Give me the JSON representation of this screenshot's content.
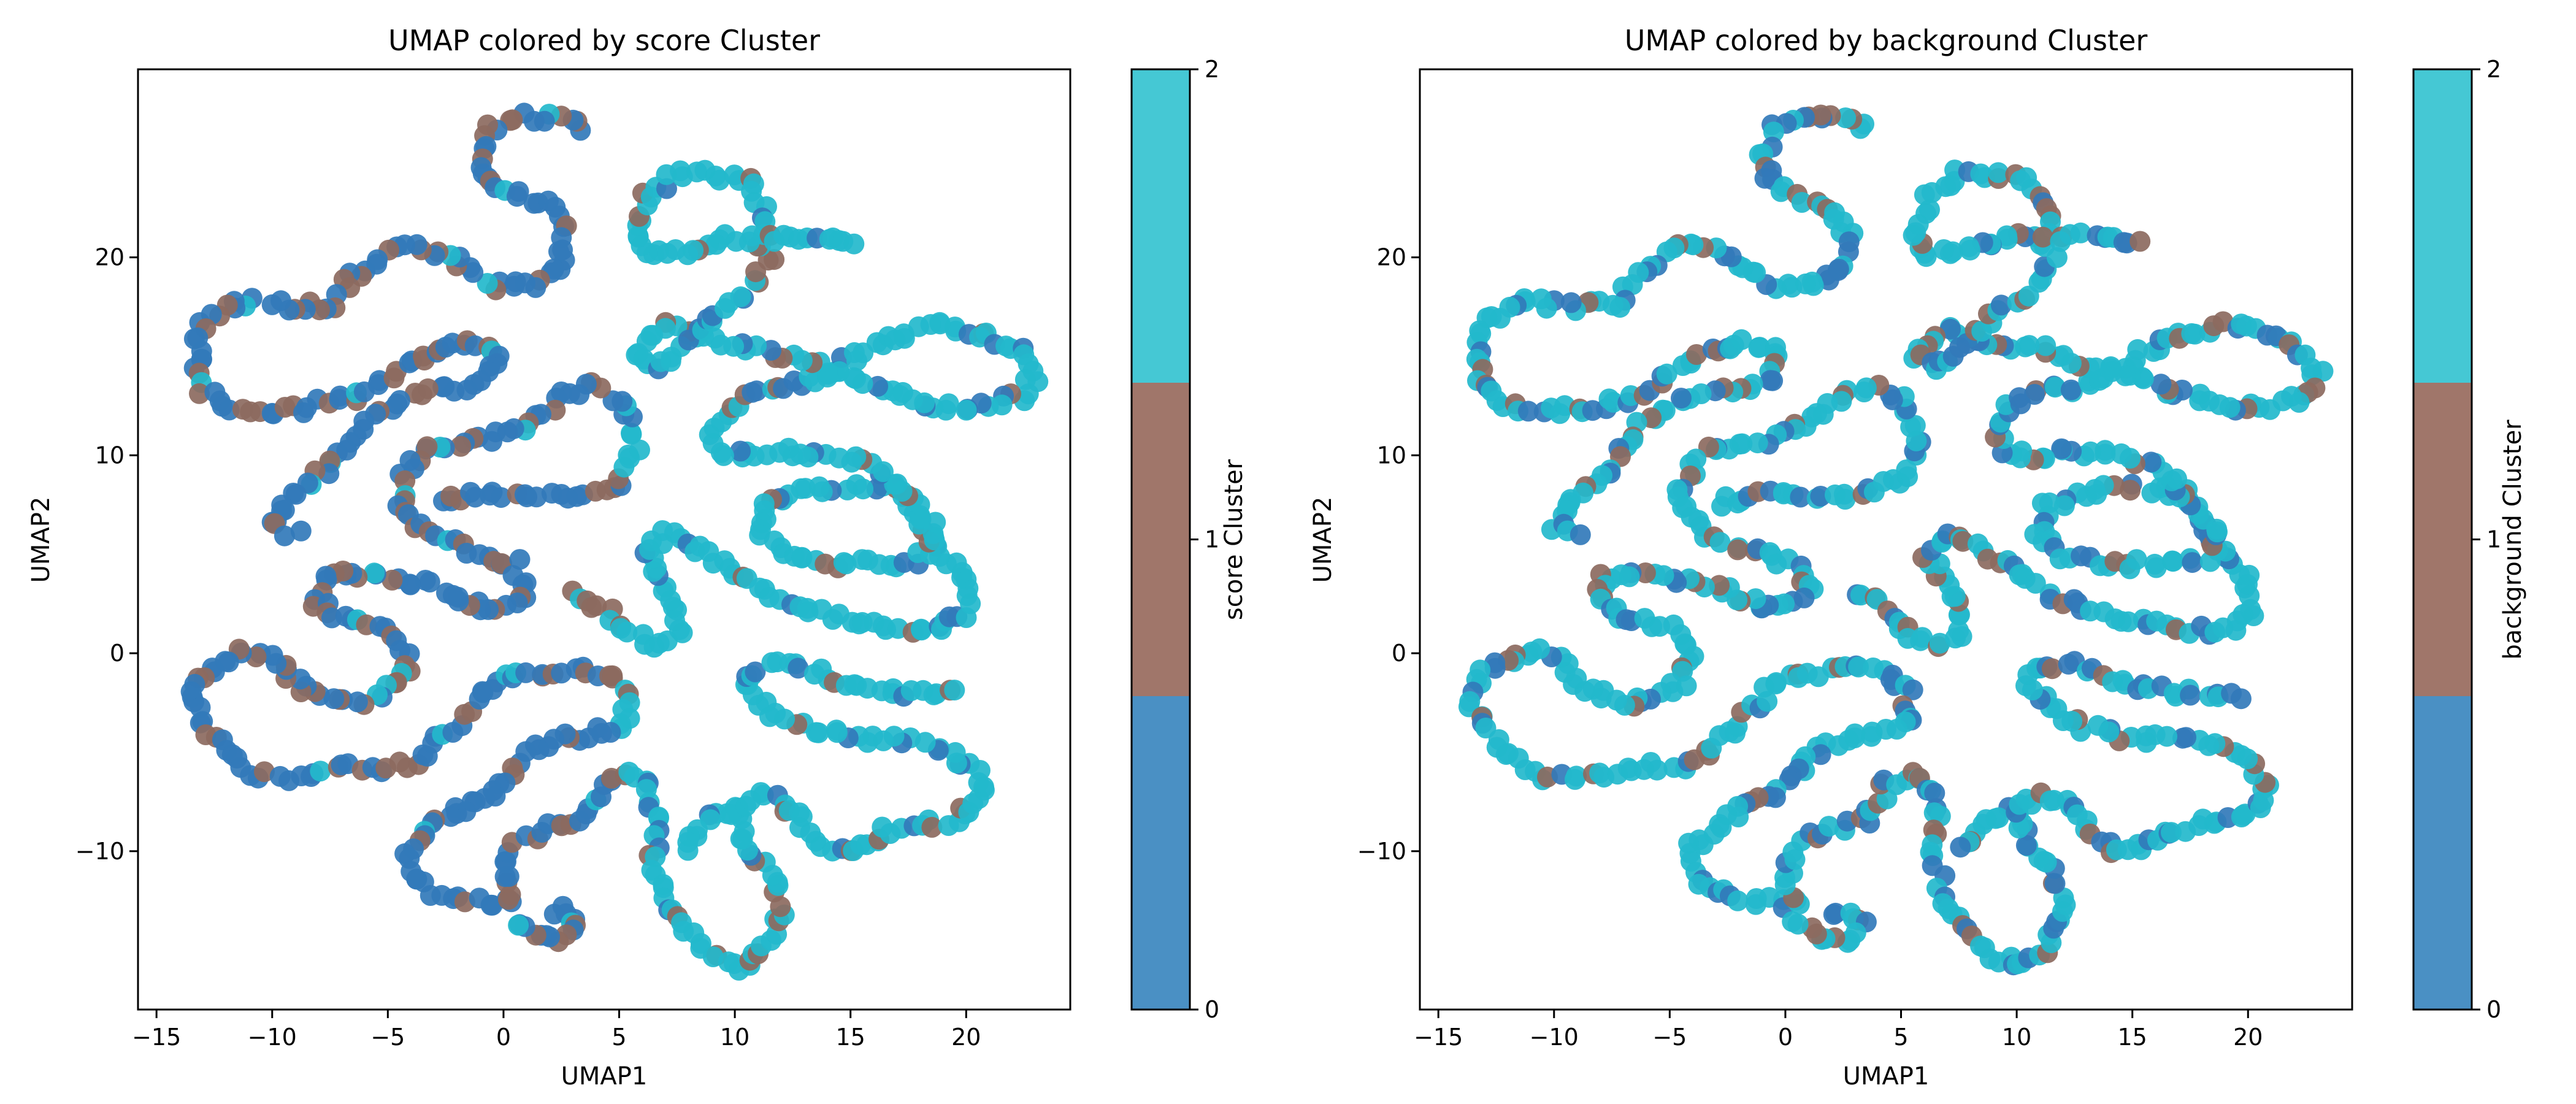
{
  "colors": {
    "cluster0": "#4a90c4",
    "cluster1": "#a0766a",
    "cluster2": "#45c8d4",
    "point0": "#3279ba",
    "point1": "#8c6a5f",
    "point2": "#23b9cc"
  },
  "chart_data": [
    {
      "type": "scatter",
      "title": "UMAP colored by score Cluster",
      "xlabel": "UMAP1",
      "ylabel": "UMAP2",
      "xlim": [
        -15.8,
        24.5
      ],
      "ylim": [
        -18,
        29.5
      ],
      "xticks": [
        -15,
        -10,
        -5,
        0,
        5,
        10,
        15,
        20
      ],
      "yticks": [
        -10,
        0,
        10,
        20
      ],
      "colorbar": {
        "label": "score Cluster",
        "ticks": [
          0,
          1,
          2
        ],
        "categories": 3
      },
      "dominant_cluster_by_curve": "left curves mostly clusters 0 and 1, right curves mostly cluster 2",
      "series": []
    },
    {
      "type": "scatter",
      "title": "UMAP colored by background Cluster",
      "xlabel": "UMAP1",
      "ylabel": "UMAP2",
      "xlim": [
        -15.8,
        24.5
      ],
      "ylim": [
        -18,
        29.5
      ],
      "xticks": [
        -15,
        -10,
        -5,
        0,
        5,
        10,
        15,
        20
      ],
      "yticks": [
        -10,
        0,
        10,
        20
      ],
      "colorbar": {
        "label": "background Cluster",
        "ticks": [
          0,
          1,
          2
        ],
        "categories": 3
      },
      "dominant_cluster_by_curve": "mostly cluster 2 with scattered clusters 0 and 1",
      "series": []
    }
  ],
  "curves": [
    [
      [
        3.5,
        26.6
      ],
      [
        2.5,
        27
      ],
      [
        1,
        27.1
      ],
      [
        -0.5,
        26.5
      ],
      [
        -1,
        25
      ],
      [
        -0.6,
        23.7
      ],
      [
        0.8,
        23
      ],
      [
        2.2,
        22.5
      ],
      [
        2.7,
        21
      ],
      [
        2.5,
        19.4
      ],
      [
        1,
        18.5
      ],
      [
        -0.5,
        18.6
      ],
      [
        -1.8,
        19.6
      ],
      [
        -3.5,
        20.5
      ],
      [
        -5,
        20.4
      ],
      [
        -6.5,
        19
      ],
      [
        -7.2,
        17.6
      ],
      [
        -9,
        17.5
      ],
      [
        -11.5,
        17.8
      ],
      [
        -13,
        16.7
      ],
      [
        -13.3,
        15
      ],
      [
        -13,
        13.3
      ],
      [
        -11.5,
        12.2
      ],
      [
        -9,
        12.3
      ],
      [
        -6.5,
        13
      ],
      [
        -4,
        14.8
      ],
      [
        -2,
        15.8
      ],
      [
        -0.3,
        15.3
      ],
      [
        -0.5,
        14
      ],
      [
        -2,
        13.3
      ],
      [
        -4,
        13.1
      ],
      [
        -6,
        11.8
      ],
      [
        -7.5,
        9.5
      ],
      [
        -9.2,
        8
      ],
      [
        -10,
        6.5
      ],
      [
        -9,
        6
      ]
    ],
    [
      [
        -2.8,
        7.6
      ],
      [
        -1.5,
        8
      ],
      [
        0.5,
        7.9
      ],
      [
        2,
        7.9
      ],
      [
        3.5,
        8.2
      ],
      [
        5,
        8.7
      ],
      [
        5.7,
        10.5
      ],
      [
        5.2,
        12.5
      ],
      [
        4,
        13.5
      ],
      [
        2.5,
        13
      ],
      [
        1,
        11.5
      ],
      [
        -0.5,
        10.8
      ],
      [
        -2,
        10.5
      ],
      [
        -3.5,
        10.2
      ],
      [
        -4.5,
        8.5
      ],
      [
        -4.3,
        6.8
      ],
      [
        -3,
        5.8
      ],
      [
        -1.5,
        5.2
      ],
      [
        0.5,
        4.5
      ],
      [
        1,
        3
      ],
      [
        -0.2,
        2.2
      ],
      [
        -1.5,
        2.6
      ],
      [
        -3,
        3.4
      ],
      [
        -5,
        3.7
      ],
      [
        -6.5,
        4.2
      ],
      [
        -7.8,
        3.8
      ],
      [
        -8,
        2.5
      ],
      [
        -7,
        1.7
      ],
      [
        -5,
        1.3
      ],
      [
        -4,
        0
      ],
      [
        -4.5,
        -1.5
      ],
      [
        -6,
        -2.4
      ],
      [
        -7.5,
        -2.5
      ],
      [
        -9,
        -1.5
      ],
      [
        -10,
        0
      ],
      [
        -11.5,
        0
      ],
      [
        -13,
        -1
      ],
      [
        -13.6,
        -2.3
      ],
      [
        -12.8,
        -4
      ],
      [
        -11.5,
        -5.5
      ],
      [
        -10.5,
        -6.2
      ],
      [
        -8.5,
        -6.2
      ],
      [
        -6.5,
        -5.8
      ],
      [
        -4.5,
        -5.7
      ],
      [
        -3.5,
        -5.3
      ],
      [
        -2.3,
        -3.8
      ],
      [
        -1,
        -2.2
      ],
      [
        0,
        -1.2
      ],
      [
        1.5,
        -1
      ],
      [
        3,
        -0.7
      ],
      [
        4.5,
        -1
      ],
      [
        5.3,
        -2
      ],
      [
        5.3,
        -3.6
      ],
      [
        4,
        -4
      ],
      [
        2.5,
        -4.3
      ],
      [
        1,
        -5.2
      ],
      [
        0,
        -6.6
      ],
      [
        -1,
        -7.5
      ],
      [
        -2.5,
        -8.3
      ],
      [
        -4,
        -9.8
      ],
      [
        -4.1,
        -11
      ],
      [
        -3,
        -12
      ],
      [
        -1.5,
        -12.5
      ],
      [
        0.5,
        -12.7
      ],
      [
        0,
        -11.5
      ],
      [
        0.5,
        -9.5
      ],
      [
        2,
        -8.8
      ],
      [
        3.5,
        -8.4
      ],
      [
        4.5,
        -6.5
      ],
      [
        5.8,
        -6.1
      ],
      [
        6.5,
        -7.3
      ],
      [
        6.5,
        -10
      ],
      [
        6.8,
        -12.5
      ],
      [
        8,
        -14
      ],
      [
        9,
        -15.2
      ],
      [
        10.2,
        -15.8
      ],
      [
        11.2,
        -15
      ],
      [
        12,
        -13
      ],
      [
        11.5,
        -11
      ],
      [
        10.5,
        -9.5
      ],
      [
        10,
        -7.8
      ],
      [
        8.7,
        -8.5
      ],
      [
        7.8,
        -10
      ]
    ],
    [
      [
        2,
        -13
      ],
      [
        2.8,
        -13
      ],
      [
        3.3,
        -13.8
      ],
      [
        2.5,
        -14.5
      ],
      [
        1.5,
        -14.3
      ],
      [
        0.5,
        -13.5
      ]
    ],
    [
      [
        10,
        -8
      ],
      [
        11,
        -7.2
      ],
      [
        12,
        -7.5
      ],
      [
        12.8,
        -8.5
      ],
      [
        13.5,
        -9.5
      ],
      [
        14.5,
        -10
      ],
      [
        15.5,
        -9.8
      ],
      [
        16.5,
        -9
      ],
      [
        18,
        -8.6
      ],
      [
        19.5,
        -8.5
      ],
      [
        20.5,
        -7.6
      ],
      [
        21,
        -6.7
      ],
      [
        20.2,
        -5.8
      ],
      [
        19,
        -4.8
      ],
      [
        17,
        -4.3
      ],
      [
        15,
        -4.3
      ],
      [
        13,
        -3.7
      ],
      [
        11.5,
        -3
      ],
      [
        10.5,
        -1.5
      ],
      [
        11,
        -0.7
      ],
      [
        12.5,
        -0.5
      ],
      [
        14,
        -1.2
      ],
      [
        15.5,
        -1.8
      ],
      [
        17,
        -2
      ],
      [
        18.5,
        -2
      ],
      [
        19.5,
        -2.1
      ]
    ],
    [
      [
        3.2,
        3.2
      ],
      [
        4.5,
        2
      ],
      [
        5.5,
        0.9
      ],
      [
        6.5,
        0.4
      ],
      [
        7.6,
        1
      ],
      [
        7.5,
        2.5
      ],
      [
        6.8,
        3.7
      ],
      [
        6.1,
        5
      ],
      [
        7,
        6
      ],
      [
        8.5,
        5.2
      ],
      [
        10,
        4
      ],
      [
        11.5,
        2.9
      ],
      [
        13,
        2.2
      ],
      [
        14.5,
        1.8
      ],
      [
        16,
        1.4
      ],
      [
        17.5,
        1.2
      ],
      [
        19,
        1.2
      ],
      [
        20,
        2
      ],
      [
        20,
        3.6
      ],
      [
        19,
        5
      ],
      [
        18,
        6.5
      ],
      [
        17.5,
        8
      ],
      [
        16,
        8.3
      ],
      [
        14,
        8.3
      ],
      [
        12.5,
        8
      ],
      [
        11.2,
        7.4
      ],
      [
        11,
        6
      ],
      [
        12,
        5
      ],
      [
        13.5,
        4.6
      ],
      [
        15,
        4.5
      ],
      [
        17,
        4.5
      ],
      [
        18.5,
        5
      ],
      [
        18.5,
        6.5
      ],
      [
        17.5,
        7.8
      ],
      [
        16,
        9.5
      ],
      [
        14,
        10
      ],
      [
        12.5,
        10.2
      ],
      [
        11,
        10
      ],
      [
        9.7,
        10
      ],
      [
        9,
        11
      ],
      [
        9.7,
        12.5
      ],
      [
        11,
        13.2
      ],
      [
        13,
        13.6
      ],
      [
        14.5,
        14.5
      ],
      [
        16,
        15.5
      ],
      [
        17.5,
        16.3
      ],
      [
        19,
        16.5
      ],
      [
        20.5,
        16.3
      ],
      [
        22,
        15.5
      ],
      [
        23,
        14.2
      ],
      [
        22.5,
        13
      ],
      [
        21,
        12.5
      ],
      [
        19,
        12.5
      ],
      [
        17,
        13.2
      ],
      [
        15,
        14
      ],
      [
        13.5,
        14.5
      ],
      [
        12,
        15
      ],
      [
        11,
        15.3
      ],
      [
        9.5,
        15.6
      ],
      [
        8.2,
        16
      ],
      [
        7.2,
        16.5
      ],
      [
        6.3,
        16
      ],
      [
        5.8,
        15
      ],
      [
        6.5,
        14.5
      ],
      [
        7.5,
        15.2
      ],
      [
        8.5,
        16.5
      ],
      [
        9.5,
        17.5
      ],
      [
        10.8,
        18.5
      ],
      [
        11.5,
        20
      ],
      [
        10.8,
        21
      ],
      [
        9.8,
        21
      ],
      [
        8.5,
        20.5
      ],
      [
        7,
        20.2
      ],
      [
        6,
        20.1
      ],
      [
        5.7,
        21.5
      ],
      [
        6.2,
        23
      ],
      [
        7.5,
        24.2
      ],
      [
        9,
        24.2
      ],
      [
        10.5,
        23.8
      ],
      [
        11.3,
        22.2
      ],
      [
        11.3,
        21
      ],
      [
        12.5,
        21
      ],
      [
        14,
        21
      ],
      [
        15.2,
        20.6
      ]
    ]
  ],
  "patterns": {
    "p0": {
      "pattern": [
        0,
        1,
        0,
        0,
        1,
        0,
        0,
        1,
        0,
        1,
        0,
        0,
        0,
        1,
        2,
        0,
        1,
        0,
        0,
        1,
        1,
        0,
        0,
        0,
        1,
        0
      ],
      "right_pattern": [
        2,
        2,
        2,
        2,
        0,
        2,
        2,
        1,
        2,
        2,
        2,
        2,
        2,
        2,
        0,
        2,
        2,
        2,
        2,
        1,
        2,
        2,
        2,
        2,
        2,
        2
      ]
    },
    "p1": {
      "pattern": [
        2,
        2,
        0,
        2,
        2,
        1,
        2,
        2,
        2,
        0,
        2,
        2,
        2,
        2,
        1,
        2,
        2,
        0,
        2,
        2,
        2,
        2,
        2,
        2,
        1,
        2,
        2,
        0,
        2,
        2
      ]
    }
  }
}
